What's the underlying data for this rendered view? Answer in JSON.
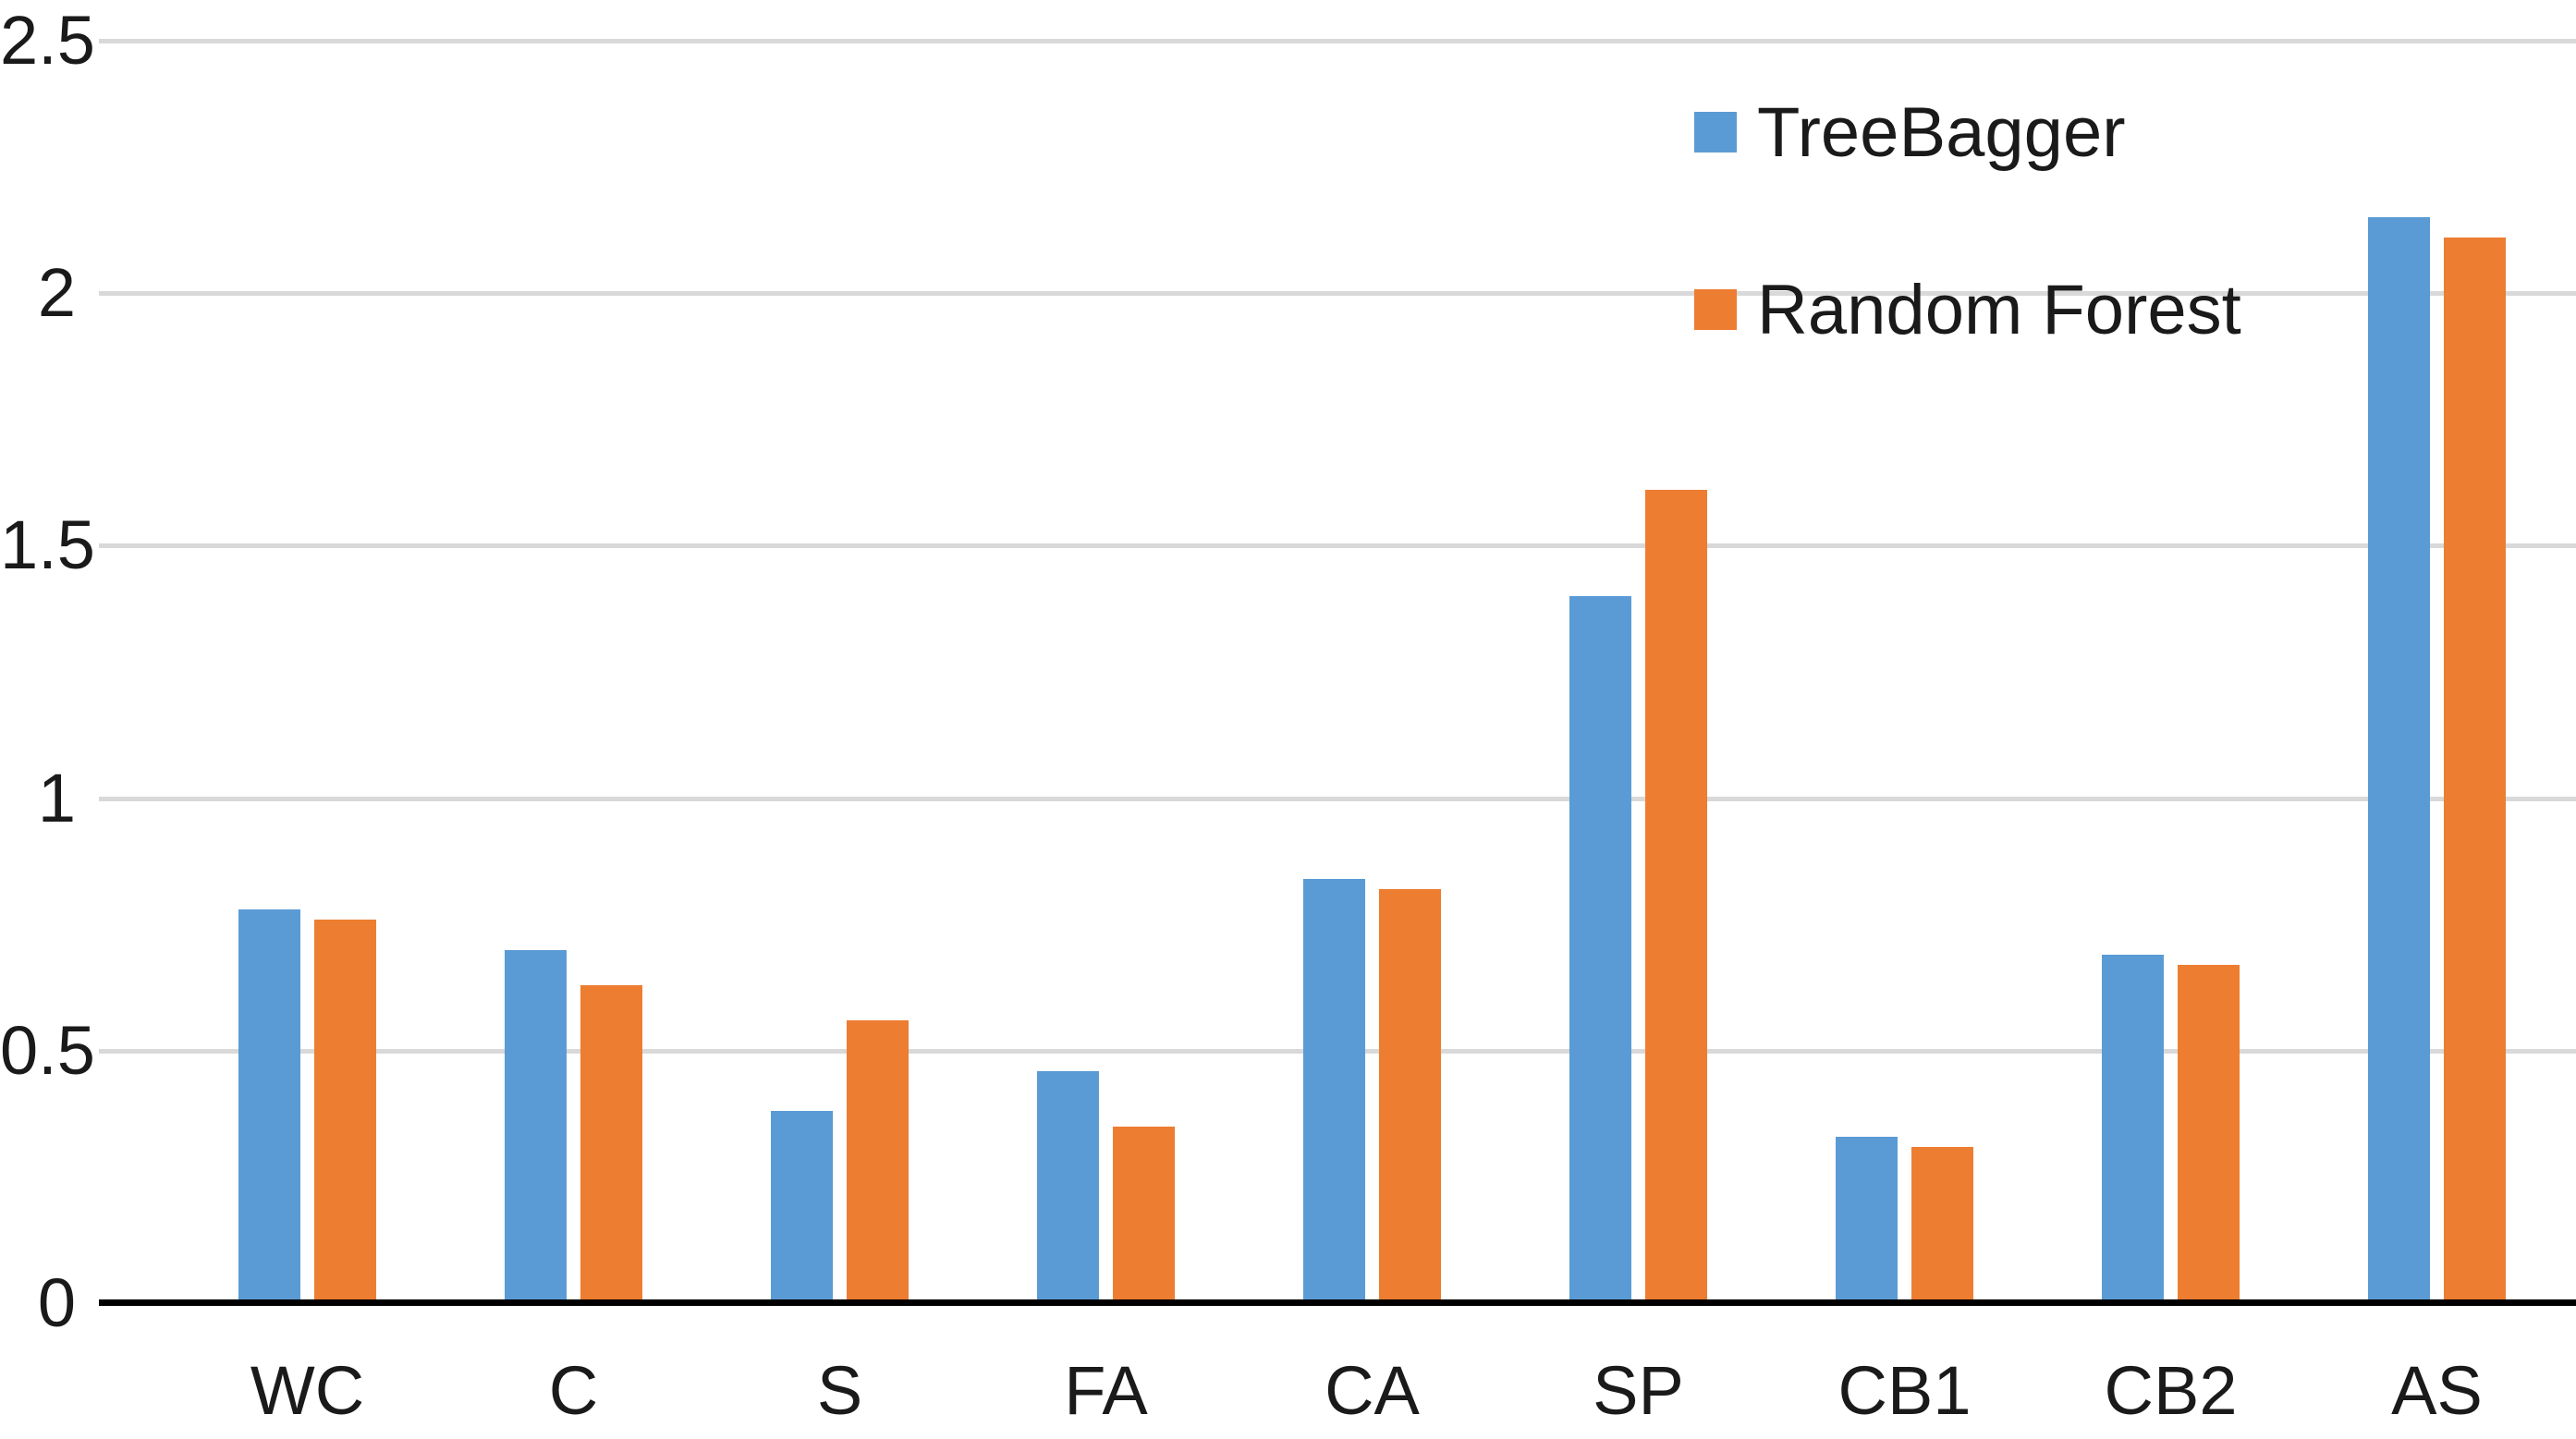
{
  "chart_data": {
    "type": "bar",
    "title": "",
    "xlabel": "",
    "ylabel": "",
    "categories": [
      "WC",
      "C",
      "S",
      "FA",
      "CA",
      "SP",
      "CB1",
      "CB2",
      "AS"
    ],
    "series": [
      {
        "name": "TreeBagger",
        "color": "#5B9BD5",
        "values": [
          0.78,
          0.7,
          0.38,
          0.46,
          0.84,
          1.4,
          0.33,
          0.69,
          2.15
        ]
      },
      {
        "name": "Random Forest",
        "color": "#ED7D31",
        "values": [
          0.76,
          0.63,
          0.56,
          0.35,
          0.82,
          1.61,
          0.31,
          0.67,
          2.11
        ]
      }
    ],
    "ylim": [
      0,
      2.5
    ],
    "y_ticks": [
      0,
      0.5,
      1,
      1.5,
      2,
      2.5
    ],
    "y_tick_labels": [
      "0",
      "0.5",
      "1",
      "1.5",
      "2",
      "2.5"
    ],
    "grid": "horizontal",
    "gridline_color": "#D9D9D9",
    "axis_line_color": "#000000",
    "legend_position": "top-right",
    "background_color": "#FFFFFF"
  }
}
